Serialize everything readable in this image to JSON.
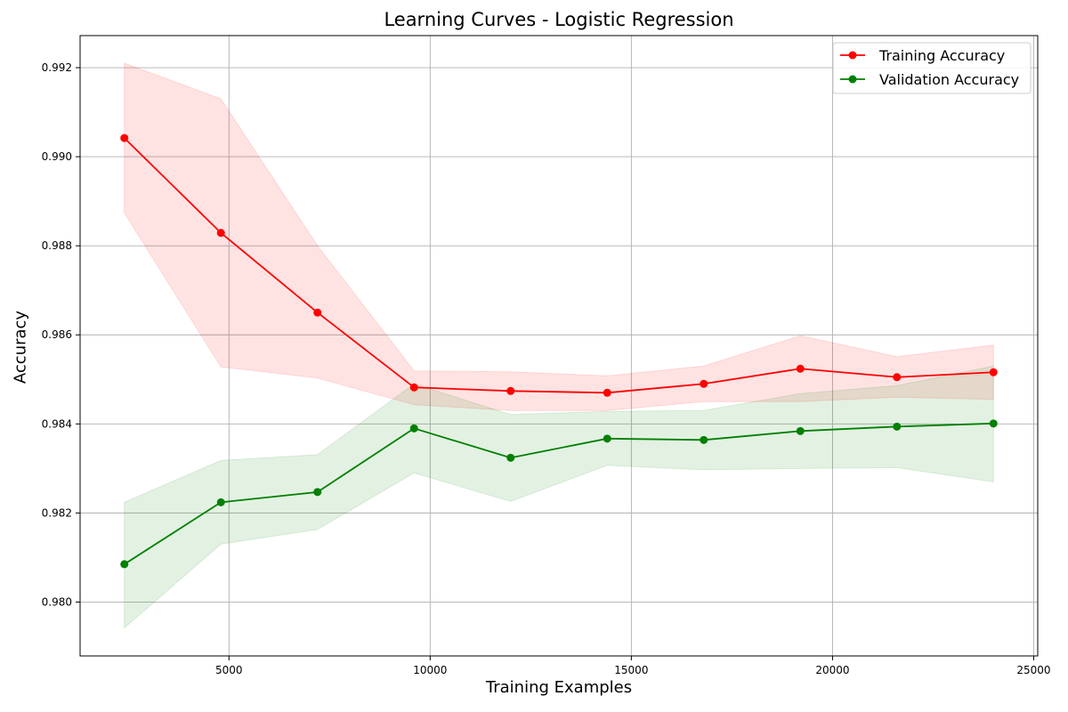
{
  "chart_data": {
    "type": "line",
    "title": "Learning Curves - Logistic Regression",
    "xlabel": "Training Examples",
    "ylabel": "Accuracy",
    "xlim": [
      1300,
      25100
    ],
    "ylim": [
      0.97879,
      0.99272
    ],
    "xticks": [
      5000,
      10000,
      15000,
      20000,
      25000
    ],
    "yticks": [
      0.98,
      0.982,
      0.984,
      0.986,
      0.988,
      0.99,
      0.992
    ],
    "grid": true,
    "legend_position": "top-right",
    "x": [
      2400,
      4800,
      7200,
      9600,
      12000,
      14400,
      16800,
      19200,
      21600,
      24000
    ],
    "series": [
      {
        "name": "Training Accuracy",
        "color": "#ff0000",
        "band_color": "#ffcccc",
        "values": [
          0.99042,
          0.98829,
          0.9865,
          0.98482,
          0.98474,
          0.9847,
          0.9849,
          0.98524,
          0.98505,
          0.98516
        ],
        "lower": [
          0.98874,
          0.98528,
          0.98503,
          0.98443,
          0.9843,
          0.9843,
          0.9845,
          0.9845,
          0.9846,
          0.98455
        ],
        "upper": [
          0.9921,
          0.9913,
          0.988,
          0.98519,
          0.98517,
          0.98508,
          0.9853,
          0.98598,
          0.98551,
          0.98577
        ]
      },
      {
        "name": "Validation Accuracy",
        "color": "#008000",
        "band_color": "#c8e6c8",
        "values": [
          0.98085,
          0.98224,
          0.98247,
          0.9839,
          0.98324,
          0.98367,
          0.98364,
          0.98384,
          0.98394,
          0.98401
        ],
        "lower": [
          0.97942,
          0.9813,
          0.98163,
          0.9829,
          0.98226,
          0.98307,
          0.98297,
          0.983,
          0.98302,
          0.9827
        ],
        "upper": [
          0.98224,
          0.98318,
          0.98331,
          0.9849,
          0.98421,
          0.98428,
          0.9843,
          0.98468,
          0.98486,
          0.9853
        ]
      }
    ]
  }
}
